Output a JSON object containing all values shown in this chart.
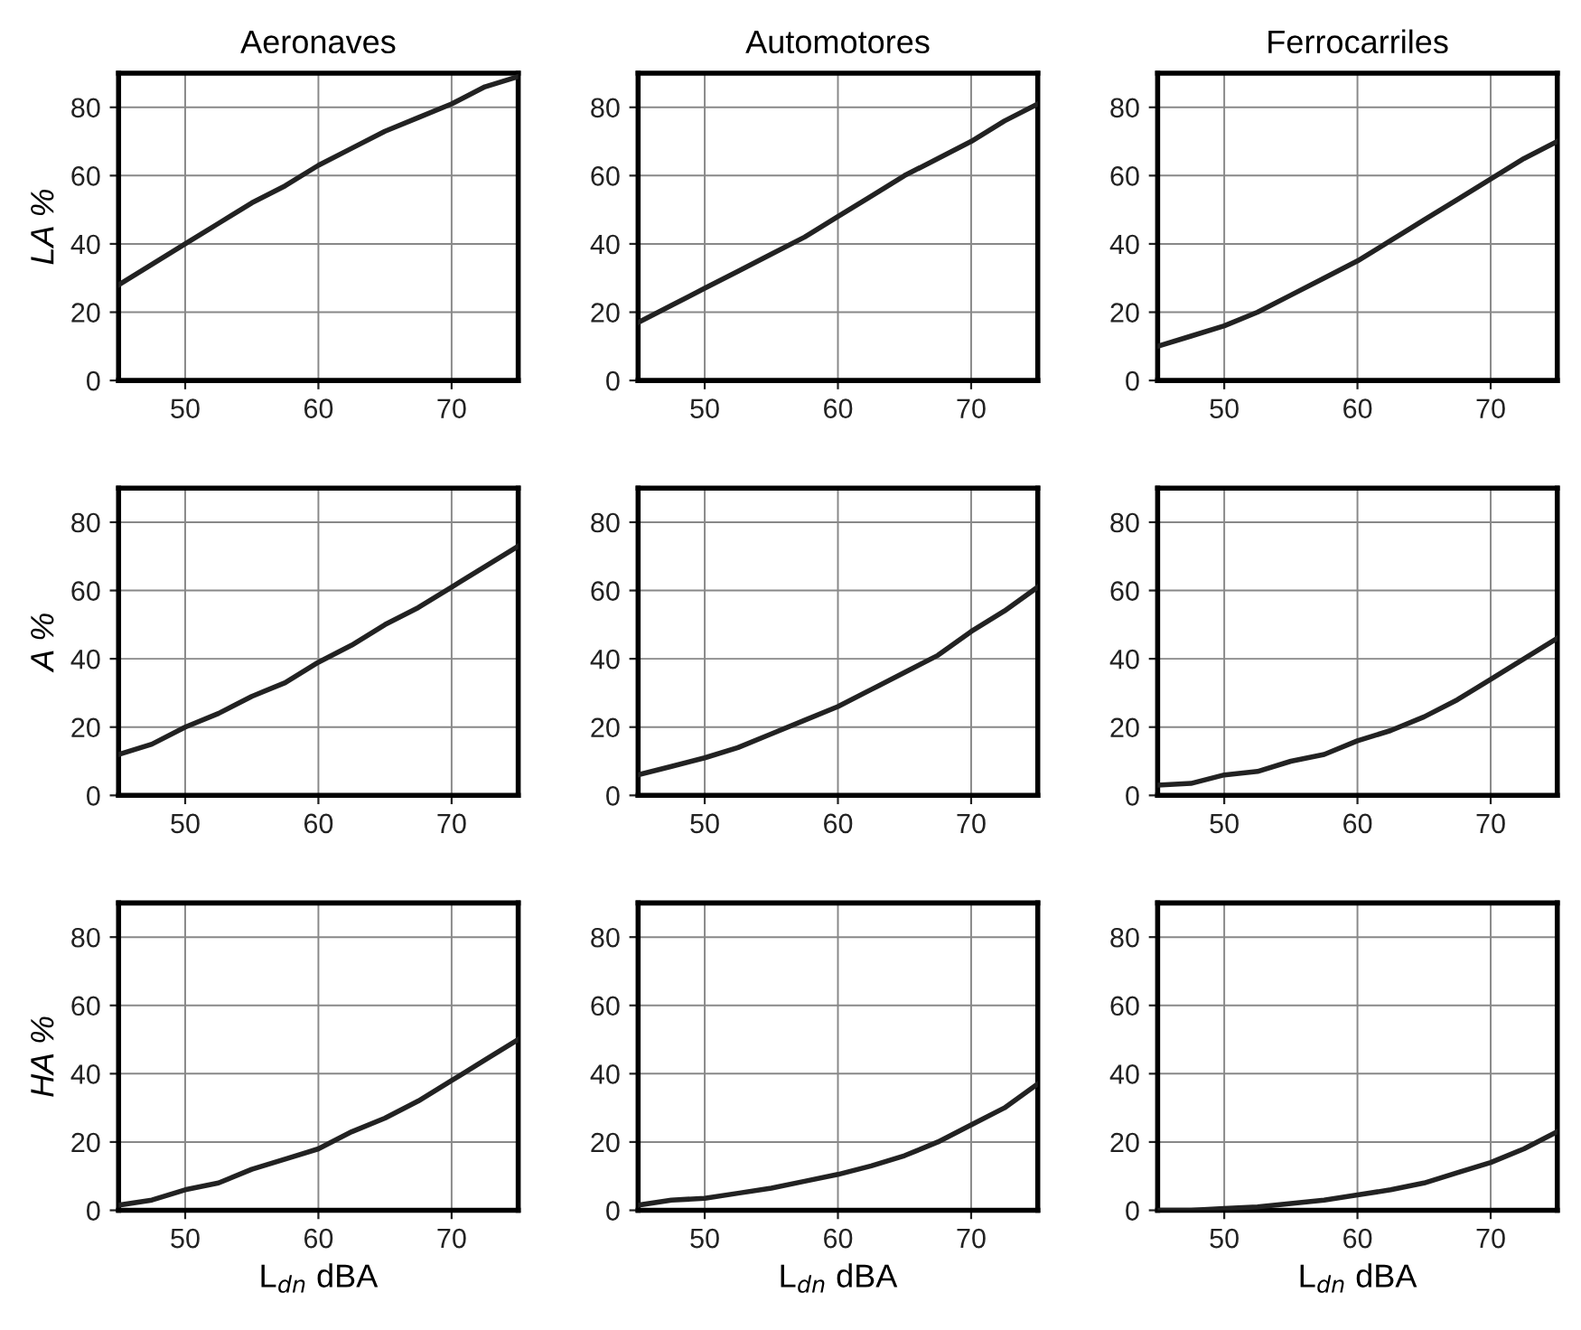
{
  "chart_data": [
    {
      "type": "line",
      "title": "Aeronaves",
      "ylabel": "LA %",
      "x": [
        45,
        47.5,
        50,
        52.5,
        55,
        57.5,
        60,
        62.5,
        65,
        67.5,
        70,
        72.5,
        75
      ],
      "series": [
        {
          "color": "#222222",
          "values": [
            28,
            34,
            40,
            46,
            52,
            57,
            63,
            68,
            73,
            77,
            81,
            86,
            89
          ]
        }
      ],
      "xlim": [
        45,
        75
      ],
      "ylim": [
        0,
        90
      ],
      "xticks": [
        50,
        60,
        70
      ],
      "yticks": [
        0,
        20,
        40,
        60,
        80
      ],
      "grid": true
    },
    {
      "type": "line",
      "title": "Automotores",
      "x": [
        45,
        47.5,
        50,
        52.5,
        55,
        57.5,
        60,
        62.5,
        65,
        67.5,
        70,
        72.5,
        75
      ],
      "series": [
        {
          "color": "#222222",
          "values": [
            17,
            22,
            27,
            32,
            37,
            42,
            48,
            54,
            60,
            65,
            70,
            76,
            81
          ]
        }
      ],
      "xlim": [
        45,
        75
      ],
      "ylim": [
        0,
        90
      ],
      "xticks": [
        50,
        60,
        70
      ],
      "yticks": [
        0,
        20,
        40,
        60,
        80
      ],
      "grid": true
    },
    {
      "type": "line",
      "title": "Ferrocarriles",
      "x": [
        45,
        47.5,
        50,
        52.5,
        55,
        57.5,
        60,
        62.5,
        65,
        67.5,
        70,
        72.5,
        75
      ],
      "series": [
        {
          "color": "#222222",
          "values": [
            10,
            13,
            16,
            20,
            25,
            30,
            35,
            41,
            47,
            53,
            59,
            65,
            70
          ]
        }
      ],
      "xlim": [
        45,
        75
      ],
      "ylim": [
        0,
        90
      ],
      "xticks": [
        50,
        60,
        70
      ],
      "yticks": [
        0,
        20,
        40,
        60,
        80
      ],
      "grid": true
    },
    {
      "type": "line",
      "ylabel": "A %",
      "x": [
        45,
        47.5,
        50,
        52.5,
        55,
        57.5,
        60,
        62.5,
        65,
        67.5,
        70,
        72.5,
        75
      ],
      "series": [
        {
          "color": "#222222",
          "values": [
            12,
            15,
            20,
            24,
            29,
            33,
            39,
            44,
            50,
            55,
            61,
            67,
            73
          ]
        }
      ],
      "xlim": [
        45,
        75
      ],
      "ylim": [
        0,
        90
      ],
      "xticks": [
        50,
        60,
        70
      ],
      "yticks": [
        0,
        20,
        40,
        60,
        80
      ],
      "grid": true
    },
    {
      "type": "line",
      "x": [
        45,
        47.5,
        50,
        52.5,
        55,
        57.5,
        60,
        62.5,
        65,
        67.5,
        70,
        72.5,
        75
      ],
      "series": [
        {
          "color": "#222222",
          "values": [
            6,
            8.5,
            11,
            14,
            18,
            22,
            26,
            31,
            36,
            41,
            48,
            54,
            61
          ]
        }
      ],
      "xlim": [
        45,
        75
      ],
      "ylim": [
        0,
        90
      ],
      "xticks": [
        50,
        60,
        70
      ],
      "yticks": [
        0,
        20,
        40,
        60,
        80
      ],
      "grid": true
    },
    {
      "type": "line",
      "x": [
        45,
        47.5,
        50,
        52.5,
        55,
        57.5,
        60,
        62.5,
        65,
        67.5,
        70,
        72.5,
        75
      ],
      "series": [
        {
          "color": "#222222",
          "values": [
            3,
            3.5,
            6,
            7,
            10,
            12,
            16,
            19,
            23,
            28,
            34,
            40,
            46
          ]
        }
      ],
      "xlim": [
        45,
        75
      ],
      "ylim": [
        0,
        90
      ],
      "xticks": [
        50,
        60,
        70
      ],
      "yticks": [
        0,
        20,
        40,
        60,
        80
      ],
      "grid": true
    },
    {
      "type": "line",
      "ylabel": "HA %",
      "xlabel": "L$_{dn}$ dBA",
      "x": [
        45,
        47.5,
        50,
        52.5,
        55,
        57.5,
        60,
        62.5,
        65,
        67.5,
        70,
        72.5,
        75
      ],
      "series": [
        {
          "color": "#222222",
          "values": [
            1.5,
            3,
            6,
            8,
            12,
            15,
            18,
            23,
            27,
            32,
            38,
            44,
            50
          ]
        }
      ],
      "xlim": [
        45,
        75
      ],
      "ylim": [
        0,
        90
      ],
      "xticks": [
        50,
        60,
        70
      ],
      "yticks": [
        0,
        20,
        40,
        60,
        80
      ],
      "grid": true
    },
    {
      "type": "line",
      "xlabel": "L$_{dn}$ dBA",
      "x": [
        45,
        47.5,
        50,
        52.5,
        55,
        57.5,
        60,
        62.5,
        65,
        67.5,
        70,
        72.5,
        75
      ],
      "series": [
        {
          "color": "#222222",
          "values": [
            1.5,
            3,
            3.5,
            5,
            6.5,
            8.5,
            10.5,
            13,
            16,
            20,
            25,
            30,
            37
          ]
        }
      ],
      "xlim": [
        45,
        75
      ],
      "ylim": [
        0,
        90
      ],
      "xticks": [
        50,
        60,
        70
      ],
      "yticks": [
        0,
        20,
        40,
        60,
        80
      ],
      "grid": true
    },
    {
      "type": "line",
      "xlabel": "L$_{dn}$ dBA",
      "x": [
        45,
        47.5,
        50,
        52.5,
        55,
        57.5,
        60,
        62.5,
        65,
        67.5,
        70,
        72.5,
        75
      ],
      "series": [
        {
          "color": "#222222",
          "values": [
            0,
            0,
            0.5,
            1,
            2,
            3,
            4.5,
            6,
            8,
            11,
            14,
            18,
            23
          ]
        }
      ],
      "xlim": [
        45,
        75
      ],
      "ylim": [
        0,
        90
      ],
      "xticks": [
        50,
        60,
        70
      ],
      "yticks": [
        0,
        20,
        40,
        60,
        80
      ],
      "grid": true
    }
  ]
}
